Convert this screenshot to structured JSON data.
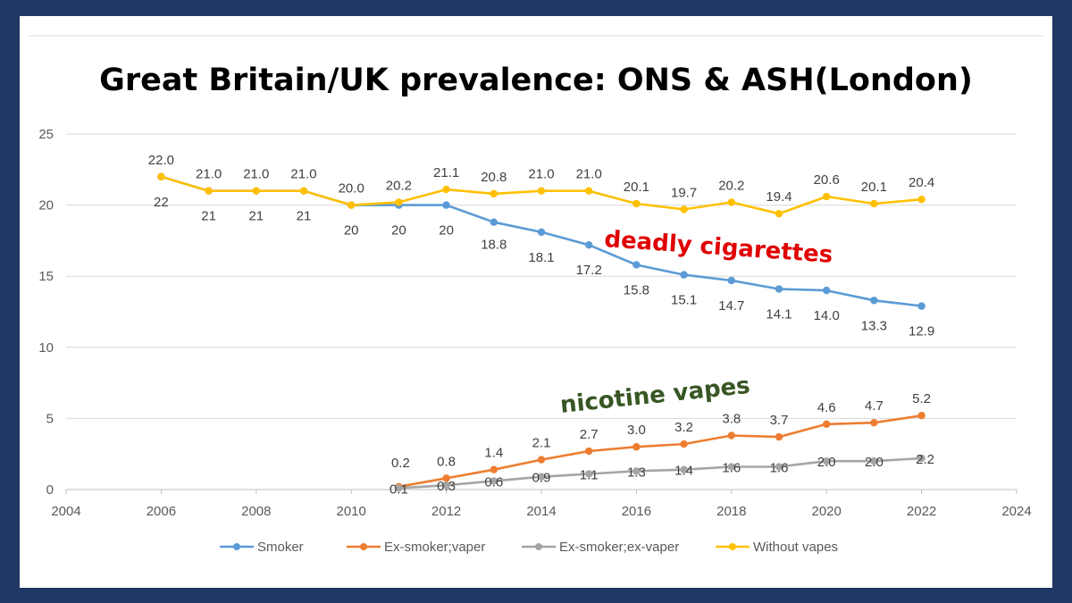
{
  "chart_data": {
    "type": "line",
    "title": "Great Britain/UK prevalence:  ONS & ASH(London)",
    "xlim": [
      2004,
      2024
    ],
    "ylim": [
      0,
      25
    ],
    "x_ticks": [
      2004,
      2006,
      2008,
      2010,
      2012,
      2014,
      2016,
      2018,
      2020,
      2022,
      2024
    ],
    "y_ticks": [
      0,
      5,
      10,
      15,
      20,
      25
    ],
    "grid": "horizontal",
    "legend_position": "bottom",
    "colors": {
      "Smoker": "#5b9bd5",
      "Ex-smoker;vaper": "#ed7d31",
      "Ex-smoker;ex-vaper": "#a5a5a5",
      "Without vapes": "#ffc000"
    },
    "series": [
      {
        "name": "Smoker",
        "x": [
          2006,
          2007,
          2008,
          2009,
          2010,
          2011,
          2012,
          2013,
          2014,
          2015,
          2016,
          2017,
          2018,
          2019,
          2020,
          2021,
          2022
        ],
        "values": [
          22,
          21,
          21,
          21,
          20,
          20,
          20,
          18.8,
          18.1,
          17.2,
          15.8,
          15.1,
          14.7,
          14.1,
          14.0,
          13.3,
          12.9
        ],
        "labels": [
          "22",
          "21",
          "21",
          "21",
          "20",
          "20",
          "20",
          "18.8",
          "18.1",
          "17.2",
          "15.8",
          "15.1",
          "14.7",
          "14.1",
          "14.0",
          "13.3",
          "12.9"
        ]
      },
      {
        "name": "Ex-smoker;vaper",
        "x": [
          2011,
          2012,
          2013,
          2014,
          2015,
          2016,
          2017,
          2018,
          2019,
          2020,
          2021,
          2022
        ],
        "values": [
          0.2,
          0.8,
          1.4,
          2.1,
          2.7,
          3.0,
          3.2,
          3.8,
          3.7,
          4.6,
          4.7,
          5.2
        ],
        "labels": [
          "0.2",
          "0.8",
          "1.4",
          "2.1",
          "2.7",
          "3.0",
          "3.2",
          "3.8",
          "3.7",
          "4.6",
          "4.7",
          "5.2"
        ]
      },
      {
        "name": "Ex-smoker;ex-vaper",
        "x": [
          2011,
          2012,
          2013,
          2014,
          2015,
          2016,
          2017,
          2018,
          2019,
          2020,
          2021,
          2022
        ],
        "values": [
          0.1,
          0.3,
          0.6,
          0.9,
          1.1,
          1.3,
          1.4,
          1.6,
          1.6,
          2.0,
          2.0,
          2.2
        ],
        "labels": [
          "0.1",
          "0.3",
          "0.6",
          "0.9",
          "1.1",
          "1.3",
          "1.4",
          "1.6",
          "1.6",
          "2.0",
          "2.0",
          "2.2"
        ]
      },
      {
        "name": "Without vapes",
        "x": [
          2006,
          2007,
          2008,
          2009,
          2010,
          2011,
          2012,
          2013,
          2014,
          2015,
          2016,
          2017,
          2018,
          2019,
          2020,
          2021,
          2022
        ],
        "values": [
          22.0,
          21.0,
          21.0,
          21.0,
          20.0,
          20.2,
          21.1,
          20.8,
          21.0,
          21.0,
          20.1,
          19.7,
          20.2,
          19.4,
          20.6,
          20.1,
          20.4
        ],
        "labels": [
          "22.0",
          "21.0",
          "21.0",
          "21.0",
          "20.0",
          "20.2",
          "21.1",
          "20.8",
          "21.0",
          "21.0",
          "20.1",
          "19.7",
          "20.2",
          "19.4",
          "20.6",
          "20.1",
          "20.4"
        ]
      }
    ],
    "annotations": [
      {
        "text": "deadly cigarettes",
        "color": "#e00000"
      },
      {
        "text": "nicotine vapes",
        "color": "#375623"
      }
    ]
  }
}
